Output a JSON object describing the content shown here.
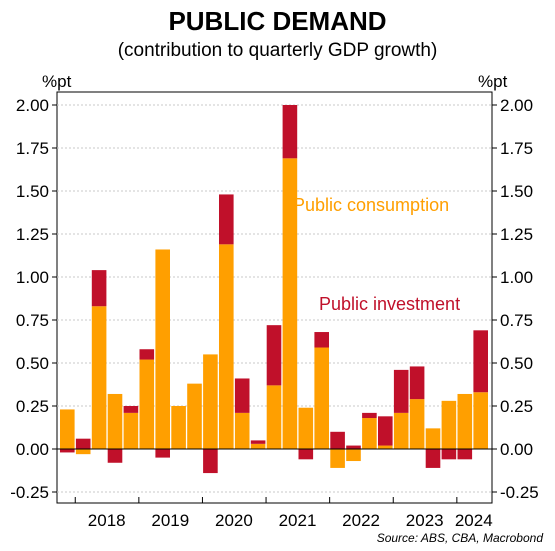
{
  "chart_data": {
    "type": "bar",
    "stacked": true,
    "title": "PUBLIC DEMAND",
    "subtitle": "(contribution to quarterly GDP growth)",
    "y_unit_left": "%pt",
    "y_unit_right": "%pt",
    "ylim": [
      -0.3,
      2.07
    ],
    "yticks": [
      "2.00",
      "1.75",
      "1.50",
      "1.25",
      "1.00",
      "0.75",
      "0.50",
      "0.25",
      "0.00",
      "-0.25"
    ],
    "ytick_values": [
      2.0,
      1.75,
      1.5,
      1.25,
      1.0,
      0.75,
      0.5,
      0.25,
      0.0,
      -0.25
    ],
    "x_year_labels": [
      "2018",
      "2019",
      "2020",
      "2021",
      "2022",
      "2023",
      "2024"
    ],
    "quarters": [
      "2017-Q4",
      "2018-Q1",
      "2018-Q2",
      "2018-Q3",
      "2018-Q4",
      "2019-Q1",
      "2019-Q2",
      "2019-Q3",
      "2019-Q4",
      "2020-Q1",
      "2020-Q2",
      "2020-Q3",
      "2020-Q4",
      "2021-Q1",
      "2021-Q2",
      "2021-Q3",
      "2021-Q4",
      "2022-Q1",
      "2022-Q2",
      "2022-Q3",
      "2022-Q4",
      "2023-Q1",
      "2023-Q2",
      "2023-Q3",
      "2023-Q4",
      "2024-Q1",
      "2024-Q2"
    ],
    "series": [
      {
        "name": "Public consumption",
        "color": "#FF9F00",
        "values": [
          0.23,
          -0.03,
          0.83,
          0.32,
          0.21,
          0.52,
          1.16,
          0.25,
          0.38,
          0.55,
          1.19,
          0.21,
          0.03,
          0.37,
          1.69,
          0.24,
          0.59,
          -0.11,
          -0.07,
          0.18,
          0.02,
          0.21,
          0.29,
          0.12,
          0.28,
          0.32,
          0.33
        ]
      },
      {
        "name": "Public investment",
        "color": "#C0102A",
        "values": [
          -0.02,
          0.06,
          0.21,
          -0.08,
          0.04,
          0.06,
          -0.05,
          0.0,
          0.0,
          -0.14,
          0.29,
          0.2,
          0.02,
          0.35,
          0.31,
          -0.06,
          0.09,
          0.1,
          0.02,
          0.03,
          0.17,
          0.25,
          0.19,
          -0.11,
          -0.06,
          -0.06,
          0.36
        ]
      }
    ],
    "source": "Source: ABS, CBA, Macrobond"
  }
}
